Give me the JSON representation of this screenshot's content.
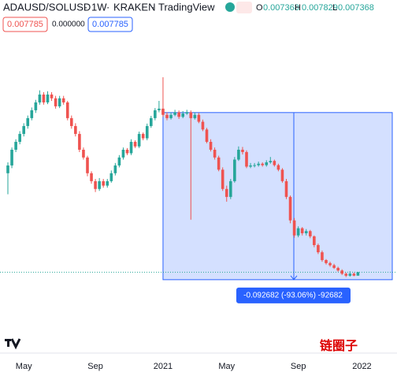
{
  "chart_data": {
    "type": "candlestick",
    "symbol": "ADAUSD/SOLUSD",
    "interval": "1W",
    "exchange": "KRAKEN",
    "source": "TradingView",
    "change_box": "0.000000",
    "watermark": "链圈子",
    "measure_label": "-0.092682 (-93.06%) -92682",
    "measure_range": [
      0.09959,
      0.006908
    ],
    "categories": [
      null,
      null,
      null,
      null,
      "May",
      null,
      null,
      null,
      null,
      null,
      null,
      null,
      null,
      null,
      null,
      null,
      null,
      null,
      null,
      null,
      null,
      null,
      "Sep",
      null,
      null,
      null,
      null,
      null,
      null,
      null,
      null,
      null,
      null,
      null,
      null,
      null,
      null,
      null,
      null,
      "2021",
      null,
      null,
      null,
      null,
      null,
      null,
      null,
      null,
      null,
      null,
      null,
      null,
      null,
      null,
      null,
      "May",
      null,
      null,
      null,
      null,
      null,
      null,
      null,
      null,
      null,
      null,
      null,
      null,
      null,
      null,
      null,
      null,
      null,
      "Sep",
      null,
      null,
      null,
      null,
      null,
      null,
      null,
      null,
      null,
      null,
      null,
      null,
      null,
      null,
      null,
      "2022"
    ],
    "open": [
      0.0378,
      0.0428,
      0.055,
      0.0624,
      0.0708,
      0.0803,
      0.0911,
      0.1033,
      0.1171,
      0.1328,
      0.1171,
      0.1328,
      0.125,
      0.11,
      0.125,
      0.1171,
      0.0911,
      0.0803,
      0.0708,
      0.055,
      0.0486,
      0.0378,
      0.0333,
      0.0294,
      0.0333,
      0.031,
      0.0333,
      0.0378,
      0.0428,
      0.0486,
      0.055,
      0.052,
      0.0624,
      0.058,
      0.0708,
      0.066,
      0.0803,
      0.0911,
      0.1033,
      0.106,
      0.096,
      0.0911,
      0.096,
      0.1,
      0.093,
      0.098,
      0.1,
      0.0911,
      0.096,
      0.086,
      0.076,
      0.0624,
      0.055,
      0.0486,
      0.04,
      0.0294,
      0.0259,
      0.0333,
      0.047,
      0.055,
      0.053,
      0.042,
      0.0428,
      0.043,
      0.044,
      0.043,
      0.045,
      0.046,
      0.043,
      0.04,
      0.0333,
      0.0259,
      0.0178,
      0.014,
      0.0157,
      0.0145,
      0.015,
      0.0138,
      0.012,
      0.0107,
      0.00945,
      0.009,
      0.0087,
      0.00834,
      0.008,
      0.0076,
      0.00736,
      0.0076,
      0.007368,
      null
    ],
    "high": [
      0.045,
      0.057,
      0.065,
      0.074,
      0.084,
      0.095,
      0.108,
      0.122,
      0.142,
      0.138,
      0.14,
      0.138,
      0.13,
      0.13,
      0.13,
      0.12,
      0.095,
      0.084,
      0.074,
      0.057,
      0.05,
      0.039,
      0.0345,
      0.035,
      0.0345,
      0.0345,
      0.0395,
      0.0445,
      0.0505,
      0.057,
      0.0565,
      0.065,
      0.064,
      0.0735,
      0.0725,
      0.0835,
      0.0945,
      0.107,
      0.12,
      0.175,
      0.1,
      0.1,
      0.104,
      0.103,
      0.102,
      0.104,
      0.103,
      0.1,
      0.099,
      0.089,
      0.078,
      0.065,
      0.057,
      0.05,
      0.0415,
      0.031,
      0.0345,
      0.049,
      0.058,
      0.0575,
      0.0545,
      0.0445,
      0.0445,
      0.0455,
      0.045,
      0.0465,
      0.049,
      0.047,
      0.044,
      0.041,
      0.0345,
      0.0265,
      0.0185,
      0.0162,
      0.016,
      0.0155,
      0.0153,
      0.014,
      0.0123,
      0.011,
      0.0096,
      0.0092,
      0.0089,
      0.0085,
      0.00815,
      0.00775,
      0.0079,
      0.00775,
      0.007829,
      null
    ],
    "low": [
      0.027,
      0.041,
      0.053,
      0.06,
      0.068,
      0.077,
      0.088,
      0.099,
      0.113,
      0.113,
      0.114,
      0.12,
      0.106,
      0.107,
      0.113,
      0.088,
      0.077,
      0.068,
      0.053,
      0.047,
      0.036,
      0.032,
      0.028,
      0.0285,
      0.03,
      0.03,
      0.0325,
      0.0365,
      0.0415,
      0.047,
      0.0505,
      0.0505,
      0.0565,
      0.0565,
      0.064,
      0.064,
      0.078,
      0.088,
      0.1,
      0.093,
      0.088,
      0.089,
      0.094,
      0.09,
      0.091,
      0.096,
      0.018,
      0.089,
      0.084,
      0.074,
      0.061,
      0.0535,
      0.047,
      0.039,
      0.0285,
      0.024,
      0.025,
      0.0325,
      0.046,
      0.051,
      0.041,
      0.041,
      0.0415,
      0.042,
      0.042,
      0.042,
      0.044,
      0.042,
      0.039,
      0.0325,
      0.025,
      0.017,
      0.0135,
      0.0136,
      0.014,
      0.014,
      0.0134,
      0.0116,
      0.0104,
      0.0092,
      0.0088,
      0.0085,
      0.0082,
      0.00785,
      0.00745,
      0.0072,
      0.00725,
      0.0073,
      0.007368,
      null
    ],
    "close": [
      0.0428,
      0.055,
      0.0624,
      0.0708,
      0.0803,
      0.0911,
      0.1033,
      0.1171,
      0.1328,
      0.1171,
      0.1328,
      0.125,
      0.11,
      0.125,
      0.1171,
      0.0911,
      0.0803,
      0.0708,
      0.055,
      0.0486,
      0.0378,
      0.0333,
      0.0294,
      0.0333,
      0.031,
      0.0333,
      0.0378,
      0.0428,
      0.0486,
      0.055,
      0.052,
      0.0624,
      0.058,
      0.0708,
      0.066,
      0.0803,
      0.0911,
      0.1033,
      0.106,
      0.096,
      0.0911,
      0.096,
      0.1,
      0.093,
      0.098,
      0.1,
      0.0911,
      0.096,
      0.086,
      0.076,
      0.0624,
      0.055,
      0.0486,
      0.04,
      0.0294,
      0.0259,
      0.0333,
      0.047,
      0.055,
      0.053,
      0.042,
      0.0428,
      0.043,
      0.044,
      0.043,
      0.045,
      0.046,
      0.043,
      0.04,
      0.0333,
      0.0259,
      0.0178,
      0.014,
      0.0157,
      0.0145,
      0.015,
      0.0138,
      0.012,
      0.0107,
      0.00945,
      0.009,
      0.0087,
      0.00834,
      0.008,
      0.0076,
      0.00736,
      0.0076,
      0.00737,
      0.007785,
      null
    ],
    "up_color": "#26a69a",
    "down_color": "#ef5350",
    "ylim": [
      0.00214,
      0.341
    ],
    "log_scale": true,
    "grid": false
  }
}
